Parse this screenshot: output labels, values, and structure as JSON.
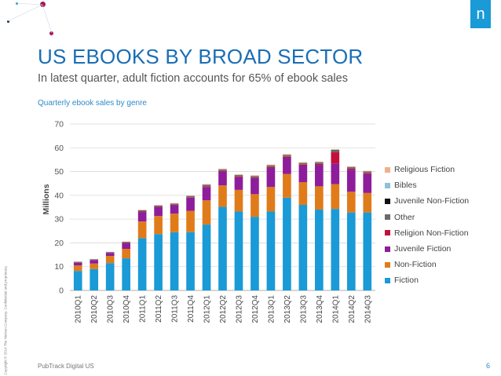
{
  "header": {
    "title": "US EBOOKS BY BROAD SECTOR",
    "subtitle": "In latest quarter, adult fiction accounts for 65% of ebook sales",
    "chart_caption": "Quarterly ebook sales by genre",
    "logo_letter": "n"
  },
  "footer": {
    "source": "PubTrack Digital US",
    "page_number": "6",
    "copyright": "Copyright © 2014 The Nielsen Company. Confidential and proprietary."
  },
  "colors": {
    "title": "#1a6eb5",
    "accent": "#1a9ad6",
    "deco_magenta": "#a3195b",
    "deco_navy": "#0b2a4a"
  },
  "chart_data": {
    "type": "bar",
    "stacked": true,
    "ylabel": "Millions",
    "xlabel": "",
    "ylim": [
      0,
      70
    ],
    "yticks": [
      0,
      10,
      20,
      30,
      40,
      50,
      60,
      70
    ],
    "grid": true,
    "legend_position": "right",
    "categories": [
      "2010Q1",
      "2010Q2",
      "2010Q3",
      "2010Q4",
      "2011Q1",
      "2011Q2",
      "2011Q3",
      "2011Q4",
      "2012Q1",
      "2012Q2",
      "2012Q3",
      "2012Q4",
      "2013Q1",
      "2013Q2",
      "2013Q3",
      "2013Q4",
      "2014Q1",
      "2014Q2",
      "2014Q3"
    ],
    "series": [
      {
        "name": "Fiction",
        "color": "#1a9ad6",
        "values": [
          8.2,
          9.0,
          11.5,
          13.5,
          22.0,
          23.7,
          24.5,
          24.5,
          27.7,
          35.2,
          33.2,
          31.0,
          33.2,
          39.0,
          36.0,
          34.0,
          34.3,
          32.8,
          32.8
        ]
      },
      {
        "name": "Non-Fiction",
        "color": "#e07b1a",
        "values": [
          2.3,
          2.3,
          3.0,
          4.0,
          7.0,
          7.6,
          7.8,
          9.0,
          10.2,
          9.0,
          9.1,
          9.5,
          10.3,
          10.0,
          9.5,
          9.8,
          10.4,
          8.7,
          8.2
        ]
      },
      {
        "name": "Juvenile Fiction",
        "color": "#8e1d9b",
        "values": [
          1.1,
          1.4,
          1.2,
          2.3,
          4.0,
          3.7,
          3.5,
          5.5,
          5.6,
          5.8,
          5.3,
          6.7,
          8.0,
          6.8,
          7.0,
          9.0,
          8.7,
          9.3,
          7.9
        ]
      },
      {
        "name": "Religion Non-Fiction",
        "color": "#c4103a",
        "values": [
          0.1,
          0.1,
          0.1,
          0.2,
          0.2,
          0.2,
          0.2,
          0.2,
          0.3,
          0.3,
          0.3,
          0.3,
          0.4,
          0.4,
          0.4,
          0.4,
          4.7,
          0.4,
          0.4
        ]
      },
      {
        "name": "Other",
        "color": "#6b6b6b",
        "values": [
          0.2,
          0.2,
          0.2,
          0.3,
          0.4,
          0.4,
          0.4,
          0.4,
          0.5,
          0.5,
          0.5,
          0.5,
          0.6,
          0.7,
          0.6,
          0.6,
          0.9,
          0.6,
          0.6
        ]
      },
      {
        "name": "Juvenile Non-Fiction",
        "color": "#111111",
        "values": [
          0.1,
          0.1,
          0.1,
          0.1,
          0.1,
          0.1,
          0.1,
          0.1,
          0.1,
          0.1,
          0.1,
          0.1,
          0.1,
          0.1,
          0.1,
          0.1,
          0.1,
          0.1,
          0.1
        ]
      },
      {
        "name": "Bibles",
        "color": "#8fbfd9",
        "values": [
          0.05,
          0.05,
          0.05,
          0.05,
          0.05,
          0.05,
          0.05,
          0.05,
          0.05,
          0.05,
          0.05,
          0.05,
          0.05,
          0.05,
          0.05,
          0.05,
          0.05,
          0.05,
          0.05
        ]
      },
      {
        "name": "Religious Fiction",
        "color": "#f0b08a",
        "values": [
          0.1,
          0.1,
          0.1,
          0.1,
          0.2,
          0.2,
          0.2,
          0.2,
          0.3,
          0.3,
          0.3,
          0.3,
          0.3,
          0.3,
          0.3,
          0.3,
          0.3,
          0.3,
          0.3
        ]
      }
    ]
  }
}
